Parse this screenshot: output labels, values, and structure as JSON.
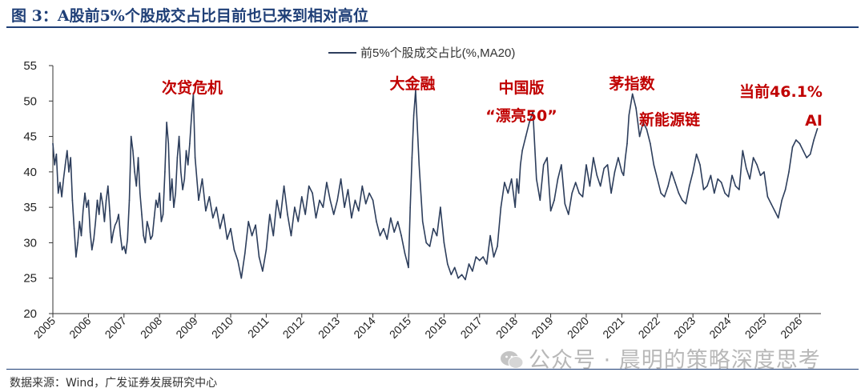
{
  "figure": {
    "title": "图 3：A股前5%个股成交占比目前也已来到相对高位",
    "source": "数据来源：Wind，广发证券发展研究中心",
    "watermark": "公众号 · 晨明的策略深度思考",
    "watermark_logo_icon": "wechat-logo-icon"
  },
  "colors": {
    "line": "#2d3e5c",
    "annotation": "#c00000",
    "title": "#1f3f77"
  },
  "chart_data": {
    "type": "line",
    "title": "",
    "xlabel": "",
    "ylabel": "",
    "legend": {
      "position": "top-center",
      "entries": [
        "前5%个股成交占比(%,MA20)"
      ]
    },
    "grid": false,
    "xlim": [
      2005,
      2026.6
    ],
    "ylim": [
      20,
      55
    ],
    "x_ticks": [
      "2005",
      "2006",
      "2007",
      "2008",
      "2009",
      "2010",
      "2011",
      "2012",
      "2013",
      "2014",
      "2015",
      "2016",
      "2017",
      "2018",
      "2019",
      "2020",
      "2021",
      "2022",
      "2023",
      "2024",
      "2025",
      "2026"
    ],
    "y_ticks": [
      20,
      25,
      30,
      35,
      40,
      45,
      50,
      55
    ],
    "series": [
      {
        "name": "前5%个股成交占比(%,MA20)",
        "x": [
          2005.0,
          2005.05,
          2005.1,
          2005.15,
          2005.2,
          2005.25,
          2005.3,
          2005.35,
          2005.4,
          2005.45,
          2005.5,
          2005.55,
          2005.6,
          2005.65,
          2005.7,
          2005.75,
          2005.8,
          2005.85,
          2005.9,
          2005.95,
          2006.0,
          2006.05,
          2006.1,
          2006.15,
          2006.2,
          2006.25,
          2006.3,
          2006.35,
          2006.4,
          2006.45,
          2006.5,
          2006.55,
          2006.6,
          2006.65,
          2006.7,
          2006.75,
          2006.8,
          2006.85,
          2006.9,
          2006.95,
          2007.0,
          2007.05,
          2007.1,
          2007.15,
          2007.2,
          2007.25,
          2007.3,
          2007.35,
          2007.4,
          2007.45,
          2007.5,
          2007.55,
          2007.6,
          2007.65,
          2007.7,
          2007.75,
          2007.8,
          2007.85,
          2007.9,
          2007.95,
          2008.0,
          2008.05,
          2008.1,
          2008.15,
          2008.2,
          2008.25,
          2008.3,
          2008.35,
          2008.4,
          2008.45,
          2008.5,
          2008.55,
          2008.6,
          2008.65,
          2008.7,
          2008.75,
          2008.8,
          2008.85,
          2008.9,
          2008.95,
          2009.0,
          2009.1,
          2009.2,
          2009.3,
          2009.4,
          2009.5,
          2009.6,
          2009.7,
          2009.8,
          2009.9,
          2010.0,
          2010.1,
          2010.2,
          2010.3,
          2010.4,
          2010.5,
          2010.6,
          2010.7,
          2010.8,
          2010.9,
          2011.0,
          2011.1,
          2011.2,
          2011.3,
          2011.4,
          2011.5,
          2011.6,
          2011.7,
          2011.8,
          2011.9,
          2012.0,
          2012.1,
          2012.2,
          2012.3,
          2012.4,
          2012.5,
          2012.6,
          2012.7,
          2012.8,
          2012.9,
          2013.0,
          2013.1,
          2013.2,
          2013.3,
          2013.4,
          2013.5,
          2013.6,
          2013.7,
          2013.8,
          2013.9,
          2014.0,
          2014.1,
          2014.2,
          2014.3,
          2014.4,
          2014.5,
          2014.6,
          2014.7,
          2014.8,
          2014.9,
          2015.0,
          2015.05,
          2015.1,
          2015.15,
          2015.2,
          2015.3,
          2015.4,
          2015.5,
          2015.6,
          2015.7,
          2015.8,
          2015.9,
          2016.0,
          2016.1,
          2016.2,
          2016.3,
          2016.4,
          2016.5,
          2016.6,
          2016.7,
          2016.8,
          2016.9,
          2017.0,
          2017.1,
          2017.2,
          2017.3,
          2017.4,
          2017.5,
          2017.6,
          2017.7,
          2017.8,
          2017.9,
          2018.0,
          2018.05,
          2018.1,
          2018.15,
          2018.2,
          2018.3,
          2018.4,
          2018.5,
          2018.6,
          2018.7,
          2018.8,
          2018.9,
          2019.0,
          2019.1,
          2019.2,
          2019.3,
          2019.4,
          2019.5,
          2019.6,
          2019.7,
          2019.8,
          2019.9,
          2020.0,
          2020.1,
          2020.2,
          2020.3,
          2020.4,
          2020.5,
          2020.6,
          2020.7,
          2020.8,
          2020.9,
          2021.0,
          2021.05,
          2021.1,
          2021.15,
          2021.2,
          2021.3,
          2021.4,
          2021.5,
          2021.6,
          2021.7,
          2021.8,
          2021.9,
          2022.0,
          2022.1,
          2022.2,
          2022.3,
          2022.4,
          2022.5,
          2022.6,
          2022.7,
          2022.8,
          2022.9,
          2023.0,
          2023.1,
          2023.2,
          2023.3,
          2023.4,
          2023.5,
          2023.6,
          2023.7,
          2023.8,
          2023.9,
          2024.0,
          2024.1,
          2024.2,
          2024.3,
          2024.4,
          2024.5,
          2024.6,
          2024.7,
          2024.8,
          2024.9,
          2025.0,
          2025.1,
          2025.2,
          2025.3,
          2025.4,
          2025.5,
          2025.6,
          2025.7,
          2025.8,
          2025.9,
          2026.0,
          2026.1,
          2026.2,
          2026.3,
          2026.4,
          2026.5
        ],
        "values": [
          44.0,
          41.0,
          42.5,
          37.0,
          38.5,
          36.5,
          39.0,
          41.0,
          43.0,
          40.0,
          42.0,
          36.0,
          32.0,
          28.0,
          30.0,
          33.0,
          31.0,
          34.5,
          37.0,
          35.0,
          36.0,
          31.5,
          29.0,
          30.5,
          33.0,
          36.0,
          34.0,
          37.0,
          35.5,
          33.0,
          36.0,
          38.0,
          34.5,
          30.0,
          31.5,
          32.5,
          33.0,
          34.0,
          31.0,
          29.0,
          29.5,
          28.5,
          30.5,
          36.0,
          45.0,
          43.0,
          40.0,
          38.0,
          42.0,
          37.0,
          34.0,
          31.0,
          30.0,
          33.0,
          32.0,
          30.5,
          31.0,
          33.5,
          36.0,
          35.0,
          37.0,
          33.0,
          34.0,
          40.0,
          47.0,
          44.0,
          36.0,
          39.0,
          35.0,
          37.0,
          42.0,
          45.0,
          40.0,
          37.5,
          39.0,
          43.0,
          41.0,
          44.0,
          48.0,
          51.0,
          42.0,
          36.0,
          39.0,
          34.5,
          36.5,
          33.5,
          35.0,
          32.0,
          34.0,
          30.5,
          32.0,
          29.0,
          27.5,
          25.0,
          28.5,
          33.0,
          31.0,
          32.5,
          28.0,
          26.0,
          29.0,
          34.0,
          31.0,
          36.0,
          33.5,
          38.0,
          34.0,
          31.0,
          35.0,
          33.0,
          36.5,
          34.0,
          38.0,
          37.0,
          33.5,
          36.0,
          35.0,
          38.5,
          36.0,
          34.0,
          36.0,
          39.0,
          35.0,
          37.5,
          33.5,
          36.0,
          34.5,
          38.0,
          35.5,
          37.0,
          36.0,
          33.0,
          31.0,
          32.0,
          30.5,
          33.5,
          31.5,
          33.0,
          31.0,
          28.5,
          26.5,
          35.0,
          42.0,
          48.0,
          51.5,
          41.0,
          33.0,
          30.0,
          29.5,
          32.0,
          31.0,
          35.0,
          30.0,
          27.0,
          25.5,
          26.5,
          25.0,
          25.5,
          24.8,
          27.0,
          26.0,
          28.0,
          27.5,
          28.0,
          27.0,
          31.0,
          28.0,
          29.5,
          35.0,
          38.5,
          37.0,
          39.0,
          35.0,
          39.0,
          37.0,
          41.0,
          43.0,
          45.0,
          47.0,
          48.5,
          39.0,
          36.0,
          41.0,
          42.0,
          34.5,
          36.0,
          39.0,
          41.0,
          35.5,
          34.0,
          37.0,
          38.5,
          37.0,
          36.5,
          41.0,
          38.0,
          42.0,
          39.5,
          38.0,
          40.5,
          41.0,
          37.0,
          40.0,
          42.0,
          40.0,
          39.5,
          42.0,
          44.0,
          48.0,
          51.0,
          49.0,
          45.0,
          47.0,
          46.0,
          44.0,
          41.0,
          39.0,
          37.0,
          36.5,
          38.0,
          40.0,
          38.5,
          37.0,
          36.0,
          35.5,
          38.0,
          40.0,
          42.5,
          41.0,
          37.5,
          38.0,
          39.5,
          37.0,
          39.0,
          38.5,
          37.0,
          36.5,
          39.5,
          38.0,
          37.5,
          43.0,
          40.5,
          39.0,
          42.0,
          41.0,
          39.5,
          40.0,
          36.5,
          35.5,
          34.5,
          33.5,
          36.0,
          37.5,
          40.0,
          43.5,
          44.5,
          44.0,
          43.0,
          42.0,
          42.5,
          44.5,
          46.1
        ]
      }
    ],
    "annotations": [
      {
        "text": "次贷危机",
        "x": 2008.8,
        "y": 51
      },
      {
        "text": "大金融",
        "x": 2015.0,
        "y": 51.5
      },
      {
        "text": "中国版",
        "x": 2018.2,
        "y": 48.5
      },
      {
        "text": "“漂亮50”",
        "x": 2018.2,
        "y": 48.5
      },
      {
        "text": "茅指数",
        "x": 2021.2,
        "y": 51
      },
      {
        "text": "新能源链",
        "x": 2021.6,
        "y": 47
      },
      {
        "text": "当前46.1%",
        "x": 2026.5,
        "y": 46.1
      },
      {
        "text": "AI",
        "x": 2026.5,
        "y": 46.1
      }
    ]
  }
}
